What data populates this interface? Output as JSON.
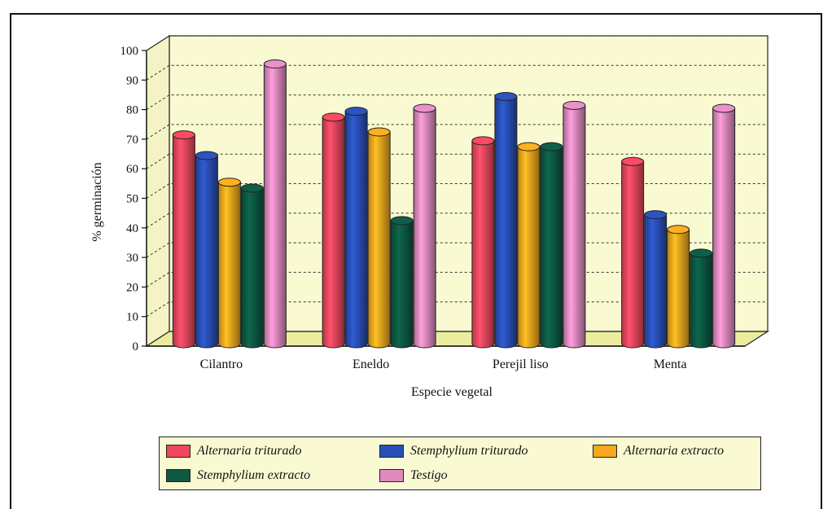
{
  "chart_data": {
    "type": "bar",
    "title": "",
    "xlabel": "Especie vegetal",
    "ylabel": "% germinación",
    "ylim": [
      0,
      100
    ],
    "yticks": [
      0,
      10,
      20,
      30,
      40,
      50,
      60,
      70,
      80,
      90,
      100
    ],
    "grid": true,
    "legend_position": "bottom",
    "categories": [
      "Cilantro",
      "Eneldo",
      "Perejil liso",
      "Menta"
    ],
    "series": [
      {
        "name": "Alternaria triturado",
        "color": "#f0475e",
        "values": [
          72,
          78,
          70,
          63
        ]
      },
      {
        "name": "Stemphylium triturado",
        "color": "#2950b8",
        "values": [
          65,
          80,
          85,
          45
        ]
      },
      {
        "name": "Alternaria extracto",
        "color": "#f7a81e",
        "values": [
          56,
          73,
          68,
          40
        ]
      },
      {
        "name": "Stemphylium extracto",
        "color": "#0c5a44",
        "values": [
          54,
          43,
          68,
          32
        ]
      },
      {
        "name": "Testigo",
        "color": "#e08ac0",
        "values": [
          96,
          81,
          82,
          81
        ]
      }
    ],
    "plot_background": "#fafad2"
  }
}
